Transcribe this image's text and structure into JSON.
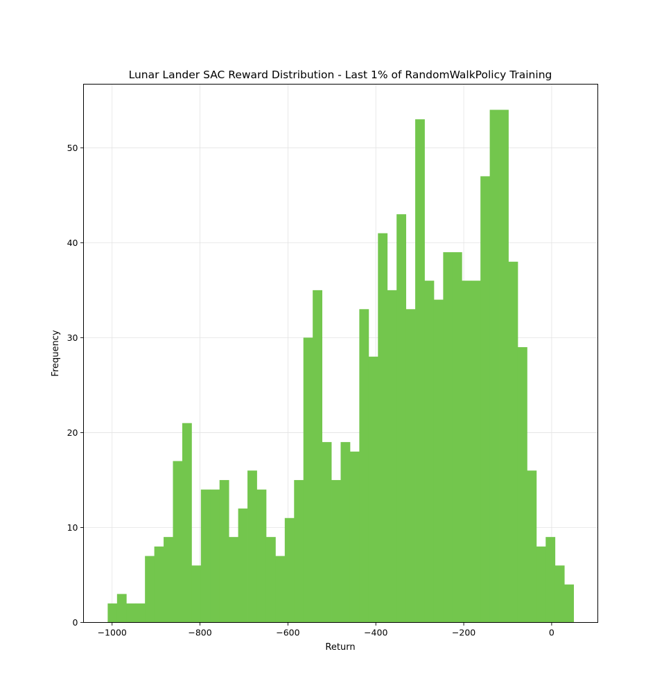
{
  "chart_data": {
    "type": "bar",
    "title": "Lunar Lander SAC Reward Distribution - Last 1% of RandomWalkPolicy Training",
    "xlabel": "Return",
    "ylabel": "Frequency",
    "xlim": [
      -1065,
      105
    ],
    "ylim": [
      0,
      56.7
    ],
    "grid": true,
    "bar_color": "#73c64d",
    "bin_start": -1010,
    "bin_width": 21.2,
    "x_ticks": [
      -1000,
      -800,
      -600,
      -400,
      -200,
      0
    ],
    "x_tick_labels": [
      "−1000",
      "−800",
      "−600",
      "−400",
      "−200",
      "0"
    ],
    "y_ticks": [
      0,
      10,
      20,
      30,
      40,
      50
    ],
    "y_tick_labels": [
      "0",
      "10",
      "20",
      "30",
      "40",
      "50"
    ],
    "values": [
      2,
      3,
      2,
      2,
      7,
      8,
      9,
      17,
      21,
      6,
      14,
      14,
      15,
      9,
      12,
      16,
      14,
      9,
      7,
      11,
      15,
      30,
      35,
      19,
      15,
      19,
      18,
      33,
      28,
      41,
      35,
      43,
      33,
      53,
      36,
      34,
      39,
      39,
      36,
      36,
      47,
      54,
      54,
      38,
      29,
      16,
      8,
      9,
      6,
      4
    ]
  }
}
